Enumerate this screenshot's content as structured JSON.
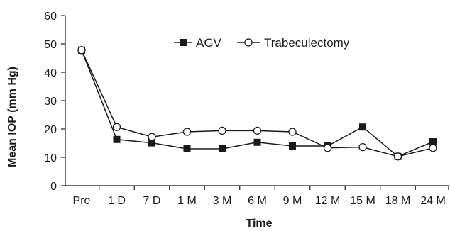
{
  "chart_data": {
    "type": "line",
    "xlabel": "Time",
    "ylabel": "Mean IOP (mm Hg)",
    "ylim": [
      0,
      60
    ],
    "yticks": [
      0,
      10,
      20,
      30,
      40,
      50,
      60
    ],
    "categories": [
      "Pre",
      "1 D",
      "7 D",
      "1 M",
      "3 M",
      "6 M",
      "9 M",
      "12 M",
      "15 M",
      "18 M",
      "24 M"
    ],
    "grid": false,
    "legend_position": "top-right",
    "series": [
      {
        "name": "AGV",
        "marker": "filled-square",
        "color": "#1a1a1a",
        "values": [
          47.8,
          16.3,
          15.1,
          13.0,
          13.0,
          15.3,
          14.0,
          14.0,
          20.7,
          10.3,
          15.5
        ]
      },
      {
        "name": "Trabeculectomy",
        "marker": "open-circle",
        "color": "#1a1a1a",
        "values": [
          47.8,
          20.7,
          17.2,
          19.0,
          19.4,
          19.4,
          19.0,
          13.3,
          13.6,
          10.3,
          13.3
        ]
      }
    ]
  }
}
